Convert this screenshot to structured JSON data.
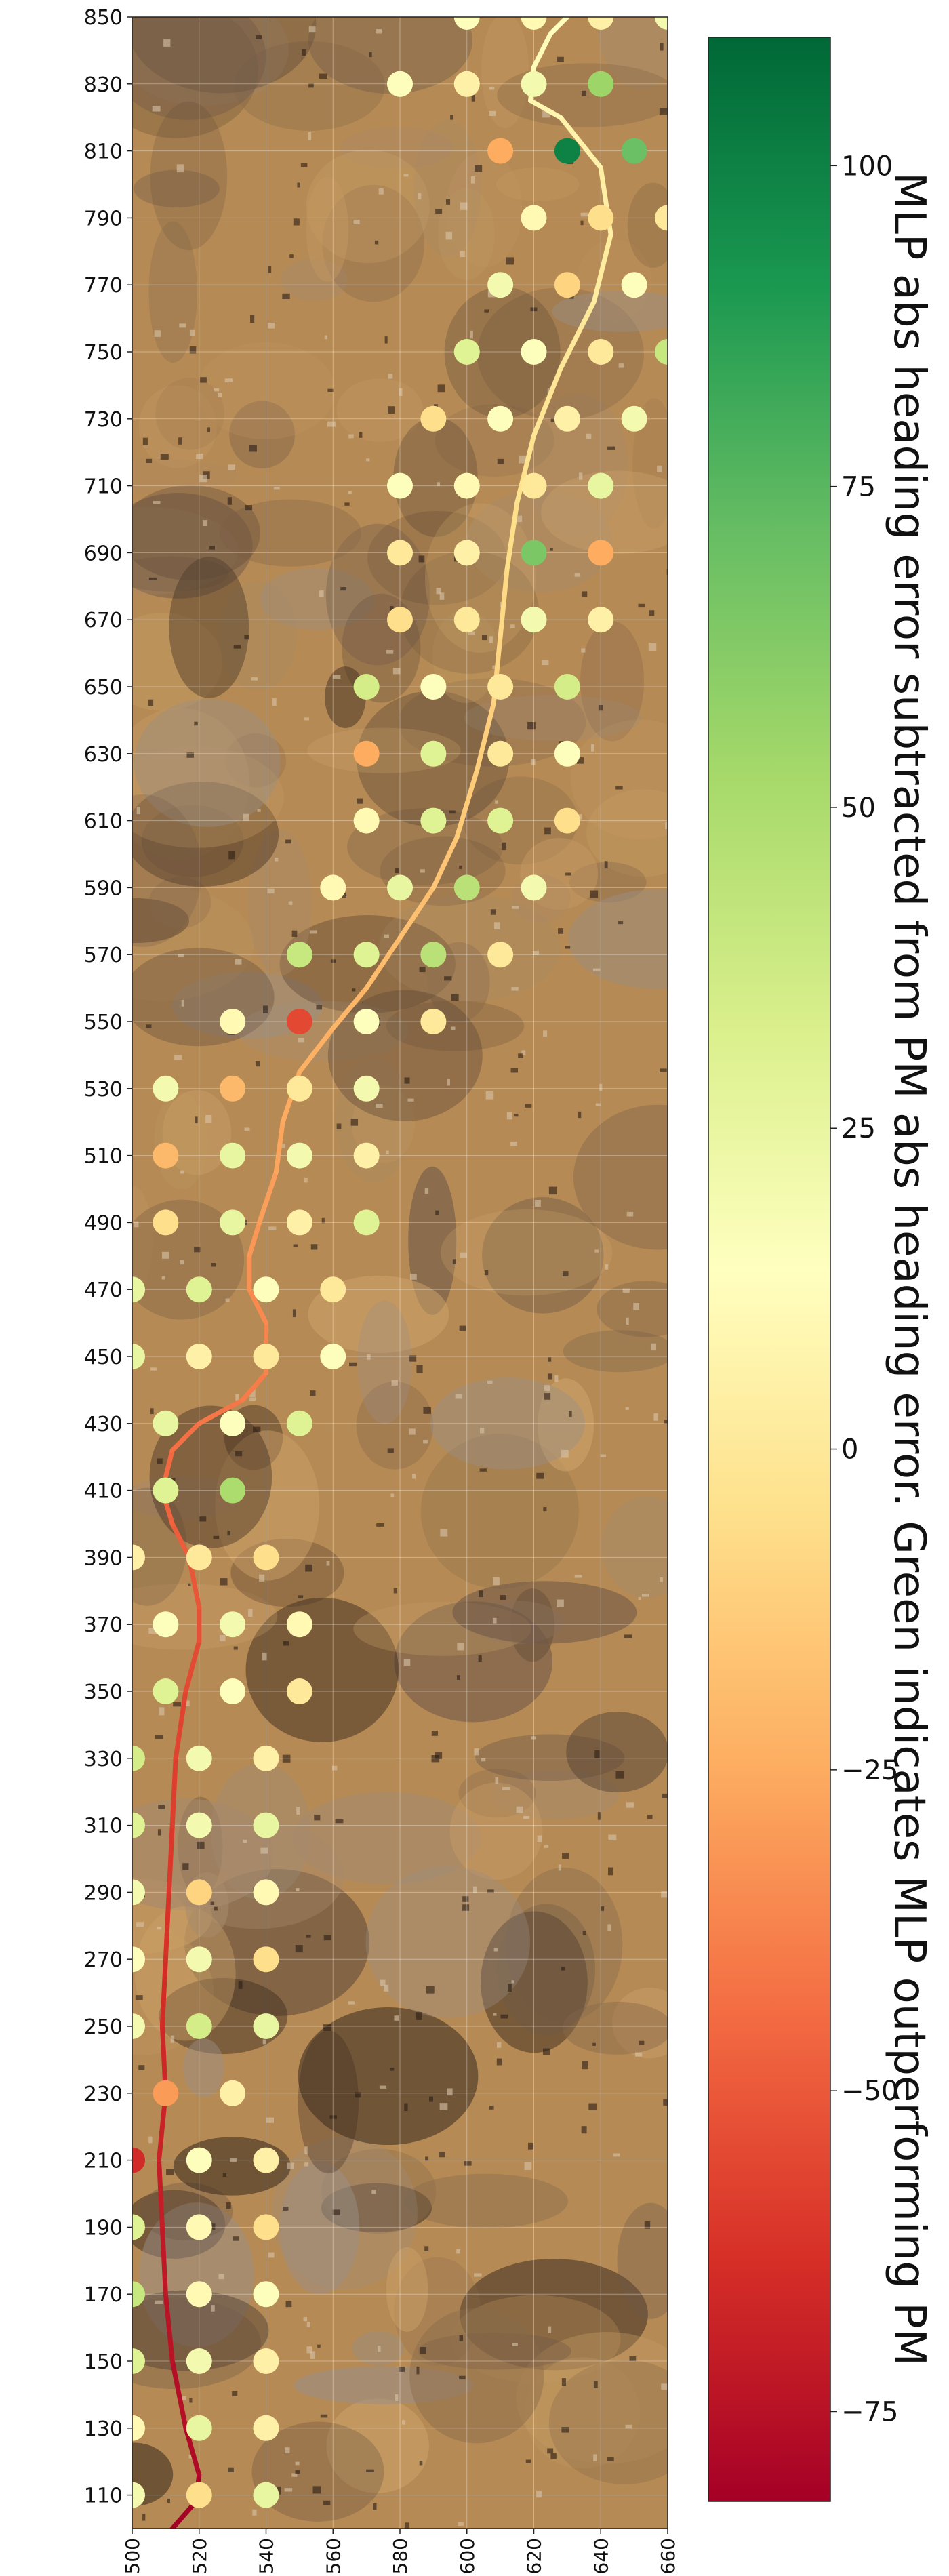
{
  "chart_data": {
    "type": "scatter",
    "title": "",
    "xlabel": "",
    "ylabel": "",
    "xlim": [
      500,
      660
    ],
    "ylim": [
      100,
      850
    ],
    "x_ticks": [
      500,
      520,
      540,
      560,
      580,
      600,
      620,
      640,
      660
    ],
    "y_ticks": [
      110,
      130,
      150,
      170,
      190,
      210,
      230,
      250,
      270,
      290,
      310,
      330,
      350,
      370,
      390,
      410,
      430,
      450,
      470,
      490,
      510,
      530,
      550,
      570,
      590,
      610,
      630,
      650,
      670,
      690,
      710,
      730,
      750,
      770,
      790,
      810,
      830,
      850
    ],
    "grid": true,
    "colorbar": {
      "label": "MLP abs heading error subtracted from PM abs heading error. Green indicates MLP outperforming PM",
      "min": -82,
      "max": 110,
      "ticks": [
        -75,
        -50,
        -25,
        0,
        25,
        50,
        75,
        100
      ],
      "tick_labels": [
        "−75",
        "−50",
        "−25",
        "0",
        "25",
        "50",
        "75",
        "100"
      ],
      "colormap": "RdYlGn",
      "colors": [
        "#a50026",
        "#d73027",
        "#f46d43",
        "#fdae61",
        "#fee08b",
        "#ffffbf",
        "#d9ef8b",
        "#a6d96a",
        "#66bd63",
        "#1a9850",
        "#006837"
      ]
    },
    "points": [
      {
        "x": 600,
        "y": 850,
        "value": 15
      },
      {
        "x": 620,
        "y": 850,
        "value": 10
      },
      {
        "x": 640,
        "y": 850,
        "value": 5
      },
      {
        "x": 660,
        "y": 850,
        "value": 20
      },
      {
        "x": 580,
        "y": 830,
        "value": 15
      },
      {
        "x": 600,
        "y": 830,
        "value": 5
      },
      {
        "x": 620,
        "y": 830,
        "value": 20
      },
      {
        "x": 640,
        "y": 830,
        "value": 55
      },
      {
        "x": 610,
        "y": 810,
        "value": -25
      },
      {
        "x": 630,
        "y": 810,
        "value": 100
      },
      {
        "x": 650,
        "y": 810,
        "value": 70
      },
      {
        "x": 620,
        "y": 790,
        "value": 10
      },
      {
        "x": 640,
        "y": 790,
        "value": -5
      },
      {
        "x": 660,
        "y": 790,
        "value": 0
      },
      {
        "x": 610,
        "y": 770,
        "value": 20
      },
      {
        "x": 630,
        "y": 770,
        "value": -10
      },
      {
        "x": 650,
        "y": 770,
        "value": 15
      },
      {
        "x": 600,
        "y": 750,
        "value": 30
      },
      {
        "x": 620,
        "y": 750,
        "value": 15
      },
      {
        "x": 640,
        "y": 750,
        "value": 0
      },
      {
        "x": 660,
        "y": 750,
        "value": 40
      },
      {
        "x": 590,
        "y": 730,
        "value": -5
      },
      {
        "x": 610,
        "y": 730,
        "value": 15
      },
      {
        "x": 630,
        "y": 730,
        "value": 5
      },
      {
        "x": 650,
        "y": 730,
        "value": 20
      },
      {
        "x": 580,
        "y": 710,
        "value": 15
      },
      {
        "x": 600,
        "y": 710,
        "value": 10
      },
      {
        "x": 620,
        "y": 710,
        "value": 0
      },
      {
        "x": 640,
        "y": 710,
        "value": 25
      },
      {
        "x": 580,
        "y": 690,
        "value": 0
      },
      {
        "x": 600,
        "y": 690,
        "value": 5
      },
      {
        "x": 620,
        "y": 690,
        "value": 65
      },
      {
        "x": 640,
        "y": 690,
        "value": -25
      },
      {
        "x": 580,
        "y": 670,
        "value": -5
      },
      {
        "x": 600,
        "y": 670,
        "value": 0
      },
      {
        "x": 620,
        "y": 670,
        "value": 20
      },
      {
        "x": 640,
        "y": 670,
        "value": 5
      },
      {
        "x": 570,
        "y": 650,
        "value": 35
      },
      {
        "x": 590,
        "y": 650,
        "value": 15
      },
      {
        "x": 610,
        "y": 650,
        "value": 0
      },
      {
        "x": 630,
        "y": 650,
        "value": 35
      },
      {
        "x": 570,
        "y": 630,
        "value": -25
      },
      {
        "x": 590,
        "y": 630,
        "value": 30
      },
      {
        "x": 610,
        "y": 630,
        "value": 0
      },
      {
        "x": 630,
        "y": 630,
        "value": 15
      },
      {
        "x": 570,
        "y": 610,
        "value": 10
      },
      {
        "x": 590,
        "y": 610,
        "value": 30
      },
      {
        "x": 610,
        "y": 610,
        "value": 30
      },
      {
        "x": 630,
        "y": 610,
        "value": -5
      },
      {
        "x": 560,
        "y": 590,
        "value": 10
      },
      {
        "x": 580,
        "y": 590,
        "value": 25
      },
      {
        "x": 600,
        "y": 590,
        "value": 45
      },
      {
        "x": 620,
        "y": 590,
        "value": 20
      },
      {
        "x": 550,
        "y": 570,
        "value": 40
      },
      {
        "x": 570,
        "y": 570,
        "value": 30
      },
      {
        "x": 590,
        "y": 570,
        "value": 45
      },
      {
        "x": 610,
        "y": 570,
        "value": 0
      },
      {
        "x": 530,
        "y": 550,
        "value": 10
      },
      {
        "x": 550,
        "y": 550,
        "value": -55
      },
      {
        "x": 570,
        "y": 550,
        "value": 15
      },
      {
        "x": 590,
        "y": 550,
        "value": 0
      },
      {
        "x": 510,
        "y": 530,
        "value": 20
      },
      {
        "x": 530,
        "y": 530,
        "value": -20
      },
      {
        "x": 550,
        "y": 530,
        "value": 0
      },
      {
        "x": 570,
        "y": 530,
        "value": 20
      },
      {
        "x": 510,
        "y": 510,
        "value": -20
      },
      {
        "x": 530,
        "y": 510,
        "value": 25
      },
      {
        "x": 550,
        "y": 510,
        "value": 20
      },
      {
        "x": 570,
        "y": 510,
        "value": 5
      },
      {
        "x": 510,
        "y": 490,
        "value": -5
      },
      {
        "x": 530,
        "y": 490,
        "value": 25
      },
      {
        "x": 550,
        "y": 490,
        "value": 5
      },
      {
        "x": 570,
        "y": 490,
        "value": 30
      },
      {
        "x": 500,
        "y": 470,
        "value": 25
      },
      {
        "x": 520,
        "y": 470,
        "value": 30
      },
      {
        "x": 540,
        "y": 470,
        "value": 15
      },
      {
        "x": 560,
        "y": 470,
        "value": 0
      },
      {
        "x": 500,
        "y": 450,
        "value": 25
      },
      {
        "x": 520,
        "y": 450,
        "value": 5
      },
      {
        "x": 540,
        "y": 450,
        "value": 0
      },
      {
        "x": 560,
        "y": 450,
        "value": 15
      },
      {
        "x": 510,
        "y": 430,
        "value": 25
      },
      {
        "x": 530,
        "y": 430,
        "value": 15
      },
      {
        "x": 550,
        "y": 430,
        "value": 30
      },
      {
        "x": 510,
        "y": 410,
        "value": 30
      },
      {
        "x": 530,
        "y": 410,
        "value": 50
      },
      {
        "x": 500,
        "y": 390,
        "value": 5
      },
      {
        "x": 520,
        "y": 390,
        "value": 0
      },
      {
        "x": 540,
        "y": 390,
        "value": -5
      },
      {
        "x": 510,
        "y": 370,
        "value": 15
      },
      {
        "x": 530,
        "y": 370,
        "value": 20
      },
      {
        "x": 550,
        "y": 370,
        "value": 10
      },
      {
        "x": 510,
        "y": 350,
        "value": 30
      },
      {
        "x": 530,
        "y": 350,
        "value": 15
      },
      {
        "x": 550,
        "y": 350,
        "value": 0
      },
      {
        "x": 500,
        "y": 330,
        "value": 35
      },
      {
        "x": 520,
        "y": 330,
        "value": 20
      },
      {
        "x": 540,
        "y": 330,
        "value": 5
      },
      {
        "x": 500,
        "y": 310,
        "value": 30
      },
      {
        "x": 520,
        "y": 310,
        "value": 20
      },
      {
        "x": 540,
        "y": 310,
        "value": 25
      },
      {
        "x": 500,
        "y": 290,
        "value": 20
      },
      {
        "x": 520,
        "y": 290,
        "value": -10
      },
      {
        "x": 540,
        "y": 290,
        "value": 10
      },
      {
        "x": 500,
        "y": 270,
        "value": 15
      },
      {
        "x": 520,
        "y": 270,
        "value": 20
      },
      {
        "x": 540,
        "y": 270,
        "value": -5
      },
      {
        "x": 500,
        "y": 250,
        "value": 20
      },
      {
        "x": 520,
        "y": 250,
        "value": 35
      },
      {
        "x": 540,
        "y": 250,
        "value": 25
      },
      {
        "x": 510,
        "y": 230,
        "value": -30
      },
      {
        "x": 530,
        "y": 230,
        "value": 5
      },
      {
        "x": 500,
        "y": 210,
        "value": -65
      },
      {
        "x": 520,
        "y": 210,
        "value": 15
      },
      {
        "x": 540,
        "y": 210,
        "value": 5
      },
      {
        "x": 500,
        "y": 190,
        "value": 30
      },
      {
        "x": 520,
        "y": 190,
        "value": 10
      },
      {
        "x": 540,
        "y": 190,
        "value": -5
      },
      {
        "x": 500,
        "y": 170,
        "value": 40
      },
      {
        "x": 520,
        "y": 170,
        "value": 10
      },
      {
        "x": 540,
        "y": 170,
        "value": 15
      },
      {
        "x": 500,
        "y": 150,
        "value": 30
      },
      {
        "x": 520,
        "y": 150,
        "value": 20
      },
      {
        "x": 540,
        "y": 150,
        "value": 5
      },
      {
        "x": 500,
        "y": 130,
        "value": 10
      },
      {
        "x": 520,
        "y": 130,
        "value": 25
      },
      {
        "x": 540,
        "y": 130,
        "value": 5
      },
      {
        "x": 500,
        "y": 110,
        "value": 20
      },
      {
        "x": 520,
        "y": 110,
        "value": -5
      },
      {
        "x": 540,
        "y": 110,
        "value": 25
      }
    ],
    "path": [
      [
        512,
        100
      ],
      [
        519,
        108
      ],
      [
        520,
        116
      ],
      [
        516,
        130
      ],
      [
        512,
        150
      ],
      [
        510,
        170
      ],
      [
        509,
        190
      ],
      [
        508,
        210
      ],
      [
        510,
        230
      ],
      [
        509,
        250
      ],
      [
        510,
        270
      ],
      [
        511,
        290
      ],
      [
        512,
        310
      ],
      [
        513,
        330
      ],
      [
        516,
        350
      ],
      [
        520,
        365
      ],
      [
        520,
        375
      ],
      [
        517,
        390
      ],
      [
        512,
        400
      ],
      [
        509,
        410
      ],
      [
        512,
        422
      ],
      [
        520,
        430
      ],
      [
        533,
        437
      ],
      [
        540,
        445
      ],
      [
        540,
        460
      ],
      [
        535,
        470
      ],
      [
        535,
        480
      ],
      [
        538,
        490
      ],
      [
        543,
        505
      ],
      [
        545,
        520
      ],
      [
        550,
        535
      ],
      [
        560,
        548
      ],
      [
        570,
        560
      ],
      [
        580,
        575
      ],
      [
        590,
        590
      ],
      [
        597,
        605
      ],
      [
        603,
        625
      ],
      [
        608,
        645
      ],
      [
        610,
        665
      ],
      [
        612,
        685
      ],
      [
        615,
        705
      ],
      [
        620,
        725
      ],
      [
        628,
        745
      ],
      [
        638,
        765
      ],
      [
        643,
        785
      ],
      [
        640,
        805
      ],
      [
        628,
        820
      ],
      [
        619,
        825
      ],
      [
        620,
        835
      ],
      [
        625,
        845
      ],
      [
        630,
        850
      ]
    ]
  }
}
